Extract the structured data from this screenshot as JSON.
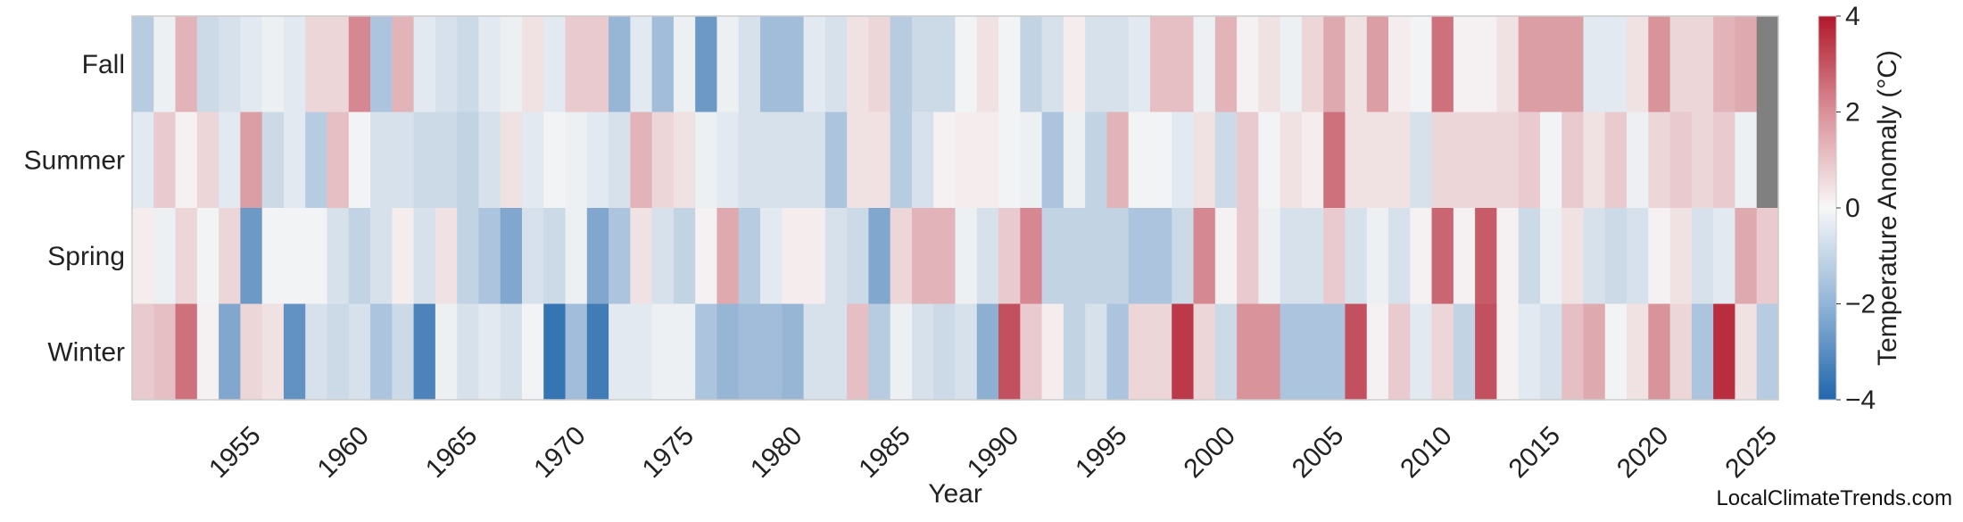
{
  "chart_data": {
    "type": "heatmap",
    "xlabel": "Year",
    "colorbar_label": "Temperature Anomaly (°C)",
    "colorbar_range": [
      -4,
      4
    ],
    "colorbar_ticks": [
      4,
      2,
      0,
      -2,
      -4
    ],
    "colorbar_tick_labels": [
      "4",
      "2",
      "0",
      "−2",
      "−4"
    ],
    "x_tick_labels": [
      "1955",
      "1960",
      "1965",
      "1970",
      "1975",
      "1980",
      "1985",
      "1990",
      "1995",
      "2000",
      "2005",
      "2010",
      "2015",
      "2020",
      "2025"
    ],
    "x_tick_values": [
      1955,
      1960,
      1965,
      1970,
      1975,
      1980,
      1985,
      1990,
      1995,
      2000,
      2005,
      2010,
      2015,
      2020,
      2025
    ],
    "rows": [
      "Fall",
      "Summer",
      "Spring",
      "Winter"
    ],
    "years_start": 1950,
    "years_end": 2025,
    "missing_color": "#808080",
    "colormap": [
      "#2166ac",
      "#f7f7f7",
      "#b2182b"
    ],
    "values": {
      "Fall": [
        -1.2,
        -0.2,
        1.2,
        -0.8,
        -0.6,
        -0.4,
        -0.2,
        -0.4,
        0.6,
        0.6,
        2.0,
        -1.4,
        1.2,
        -0.4,
        -0.6,
        -0.8,
        -0.4,
        -0.2,
        0.4,
        -0.4,
        0.8,
        0.8,
        -1.8,
        -0.4,
        -1.6,
        -0.2,
        -2.6,
        -0.2,
        -0.6,
        -1.6,
        -1.6,
        -0.4,
        -0.6,
        0.4,
        0.6,
        -1.2,
        -0.8,
        -0.8,
        -0.1,
        0.4,
        -0.1,
        -1.0,
        -0.6,
        0.2,
        -0.6,
        -0.6,
        -0.4,
        1.0,
        1.0,
        -0.2,
        1.2,
        0.1,
        0.4,
        -0.2,
        0.6,
        1.4,
        0.4,
        1.6,
        0.2,
        -0.1,
        2.4,
        0.1,
        0.1,
        0.4,
        1.6,
        1.6,
        1.6,
        -0.4,
        -0.4,
        0.4,
        1.8,
        0.6,
        0.6,
        1.2,
        1.4,
        null
      ],
      "Summer": [
        -0.4,
        0.8,
        0.1,
        0.6,
        -0.4,
        1.6,
        -0.8,
        -0.4,
        -1.2,
        1.0,
        -0.1,
        -0.6,
        -0.6,
        -0.8,
        -0.8,
        -1.0,
        -0.6,
        0.4,
        -0.4,
        -0.1,
        -0.2,
        -0.4,
        -0.6,
        1.2,
        0.6,
        0.4,
        -0.2,
        -0.4,
        -0.6,
        -0.6,
        -0.6,
        -0.6,
        -1.4,
        0.4,
        0.4,
        -1.2,
        -0.6,
        0.1,
        0.2,
        0.2,
        -0.1,
        -0.2,
        -1.4,
        -0.2,
        -1.0,
        1.2,
        -0.1,
        -0.1,
        -0.4,
        0.4,
        -0.8,
        0.8,
        -0.1,
        0.4,
        0.2,
        2.4,
        0.4,
        0.4,
        0.4,
        -0.6,
        0.6,
        0.6,
        0.6,
        0.6,
        0.8,
        -0.1,
        0.8,
        0.4,
        0.8,
        -0.2,
        0.6,
        0.8,
        0.6,
        0.8,
        -0.2,
        null
      ],
      "Spring": [
        0.2,
        -0.2,
        0.6,
        -0.1,
        0.6,
        -2.6,
        -0.1,
        -0.1,
        -0.1,
        -0.6,
        -1.0,
        -0.6,
        0.2,
        -0.6,
        0.4,
        -1.0,
        -1.4,
        -2.2,
        -0.6,
        -0.8,
        -0.2,
        -2.2,
        -1.4,
        0.4,
        -0.6,
        -1.0,
        0.1,
        1.4,
        -1.2,
        -0.4,
        0.2,
        0.2,
        -0.6,
        -0.8,
        -2.2,
        0.6,
        1.2,
        1.2,
        -0.2,
        -0.6,
        0.8,
        2.0,
        -1.0,
        -1.0,
        -1.0,
        -1.0,
        -1.4,
        -1.4,
        -0.8,
        2.0,
        0.1,
        0.8,
        -0.2,
        -0.6,
        -0.6,
        0.8,
        -0.6,
        -0.2,
        -0.6,
        0.1,
        2.6,
        0.1,
        2.8,
        0.1,
        -0.8,
        -0.2,
        0.4,
        -0.6,
        -0.8,
        -0.6,
        0.1,
        0.4,
        -0.6,
        -0.4,
        1.4,
        0.8
      ],
      "Winter": [
        0.8,
        1.0,
        2.4,
        0.1,
        -2.2,
        0.6,
        0.4,
        -2.8,
        -0.6,
        -0.8,
        -0.6,
        -1.4,
        -0.8,
        -3.2,
        -0.2,
        -0.6,
        -0.4,
        -0.6,
        -0.1,
        -3.6,
        -1.6,
        -3.4,
        -0.4,
        -0.4,
        -0.2,
        -0.2,
        -1.4,
        -1.8,
        -1.6,
        -1.6,
        -1.8,
        -0.6,
        -0.6,
        1.0,
        -1.2,
        -0.2,
        -0.6,
        -0.8,
        -0.6,
        -2.0,
        3.0,
        0.8,
        0.2,
        -1.0,
        -0.6,
        -1.4,
        0.6,
        0.6,
        3.4,
        0.6,
        -0.8,
        1.8,
        1.8,
        -1.4,
        -1.4,
        -1.4,
        3.0,
        0.1,
        0.8,
        -0.4,
        0.6,
        -1.0,
        3.0,
        0.1,
        -0.4,
        -0.6,
        1.0,
        1.4,
        -0.1,
        0.4,
        1.8,
        0.6,
        -1.4,
        3.6,
        0.4,
        -1.2
      ]
    }
  },
  "watermark": "LocalClimateTrends.com"
}
